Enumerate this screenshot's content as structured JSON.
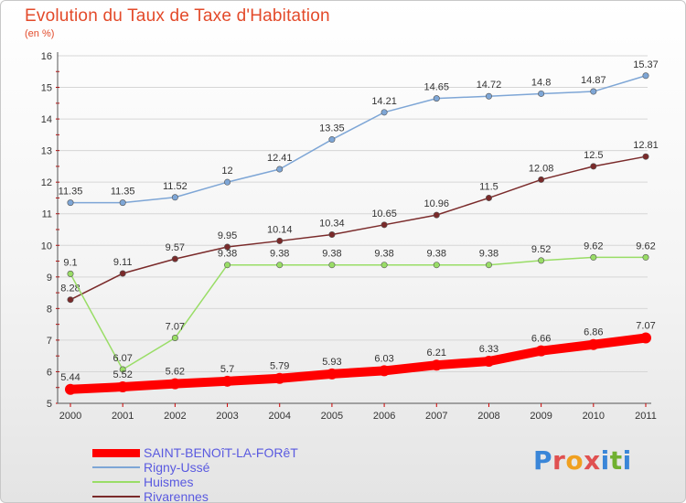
{
  "chart_data": {
    "type": "line",
    "title": "Evolution du Taux de Taxe d'Habitation",
    "subtitle": "(en %)",
    "categories": [
      "2000",
      "2001",
      "2002",
      "2003",
      "2004",
      "2005",
      "2006",
      "2007",
      "2008",
      "2009",
      "2010",
      "2011"
    ],
    "ylim": [
      5,
      16
    ],
    "yticks": [
      5,
      6,
      7,
      8,
      9,
      10,
      11,
      12,
      13,
      14,
      15,
      16
    ],
    "legend_position": "bottom-left",
    "series": [
      {
        "name": "SAINT-BENOîT-LA-FORêT",
        "color": "#ff0000",
        "values": [
          5.44,
          5.52,
          5.62,
          5.7,
          5.79,
          5.93,
          6.03,
          6.21,
          6.33,
          6.66,
          6.86,
          7.07
        ],
        "labels": [
          "5.44",
          "5.52",
          "5.62",
          "5.7",
          "5.79",
          "5.93",
          "6.03",
          "6.21",
          "6.33",
          "6.66",
          "6.86",
          "7.07"
        ]
      },
      {
        "name": "Rigny-Ussé",
        "color": "#7ea6d6",
        "values": [
          11.35,
          11.35,
          11.52,
          12,
          12.41,
          13.35,
          14.21,
          14.65,
          14.72,
          14.8,
          14.87,
          15.37
        ],
        "labels": [
          "11.35",
          "11.35",
          "11.52",
          "12",
          "12.41",
          "13.35",
          "14.21",
          "14.65",
          "14.72",
          "14.8",
          "14.87",
          "15.37"
        ]
      },
      {
        "name": "Huismes",
        "color": "#99dd66",
        "values": [
          9.1,
          6.07,
          7.07,
          9.38,
          9.38,
          9.38,
          9.38,
          9.38,
          9.38,
          9.52,
          9.62,
          9.62
        ],
        "labels": [
          "9.1",
          "6.07",
          "7.07",
          "9.38",
          "9.38",
          "9.38",
          "9.38",
          "9.38",
          "9.38",
          "9.52",
          "9.62",
          "9.62"
        ]
      },
      {
        "name": "Rivarennes",
        "color": "#7a2a2a",
        "values": [
          8.28,
          9.11,
          9.57,
          9.95,
          10.14,
          10.34,
          10.65,
          10.96,
          11.5,
          12.08,
          12.5,
          12.81
        ],
        "labels": [
          "8.28",
          "9.11",
          "9.57",
          "9.95",
          "10.14",
          "10.34",
          "10.65",
          "10.96",
          "11.5",
          "12.08",
          "12.5",
          "12.81"
        ]
      }
    ]
  },
  "logo": {
    "text": "Proxiti"
  }
}
